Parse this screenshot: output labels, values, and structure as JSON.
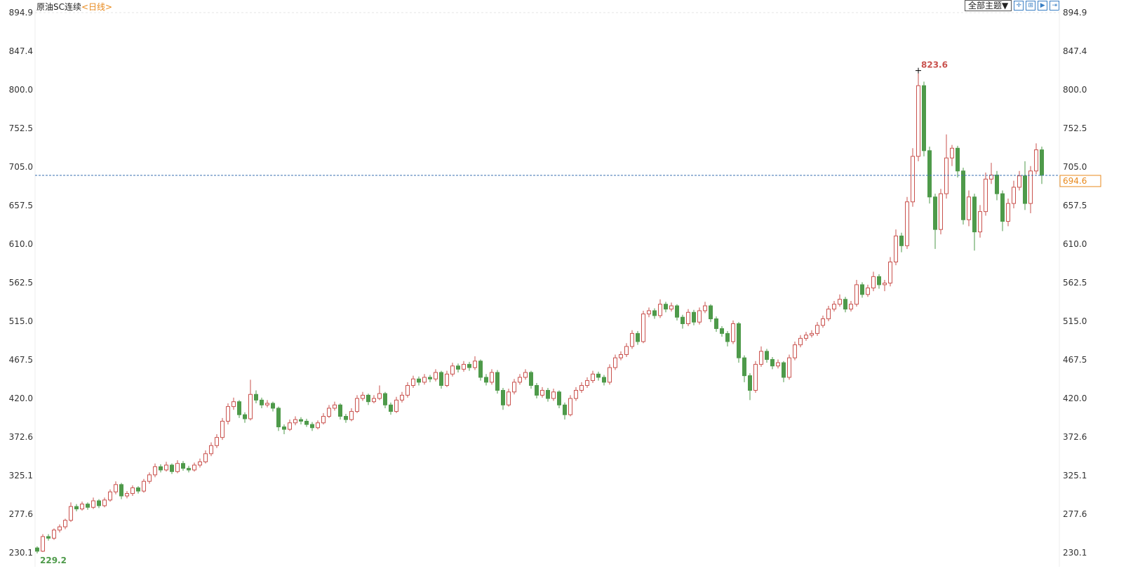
{
  "header": {
    "instrument": "原油SC连续",
    "period": "<日线>",
    "theme_button": "全部主题▼",
    "tool_icons": [
      "crosshair-icon",
      "zoom-range-icon",
      "play-forward-icon",
      "jump-latest-icon"
    ]
  },
  "chart_data": {
    "type": "candlestick",
    "title": "",
    "yticks": [
      "230.1",
      "277.6",
      "325.1",
      "372.6",
      "420.0",
      "467.5",
      "515.0",
      "562.5",
      "610.0",
      "657.5",
      "705.0",
      "752.5",
      "800.0",
      "847.4",
      "894.9"
    ],
    "ylim": [
      230.1,
      894.9
    ],
    "axis_sides": "left-and-right",
    "grid": false,
    "max_label": "823.6",
    "min_label": "229.2",
    "last_price": 694.6,
    "last_price_label": "694.6",
    "colors": {
      "up": "#c9514d",
      "down": "#4e9a4a",
      "last_line": "#3a6fb0",
      "last_label": "#e8891c",
      "max_label": "#c9514d",
      "min_label": "#4e9a4a"
    },
    "candles_ohlc": [
      [
        236,
        238,
        229.2,
        232
      ],
      [
        232,
        253,
        231,
        250
      ],
      [
        250,
        253,
        245,
        248
      ],
      [
        248,
        260,
        246,
        258
      ],
      [
        258,
        265,
        255,
        262
      ],
      [
        262,
        272,
        259,
        270
      ],
      [
        270,
        292,
        268,
        287
      ],
      [
        287,
        290,
        281,
        284
      ],
      [
        284,
        293,
        282,
        290
      ],
      [
        290,
        292,
        283,
        286
      ],
      [
        286,
        298,
        284,
        294
      ],
      [
        294,
        296,
        285,
        288
      ],
      [
        288,
        298,
        286,
        295
      ],
      [
        295,
        308,
        293,
        305
      ],
      [
        305,
        318,
        302,
        314
      ],
      [
        314,
        316,
        296,
        300
      ],
      [
        300,
        306,
        297,
        303
      ],
      [
        303,
        313,
        300,
        310
      ],
      [
        310,
        312,
        303,
        306
      ],
      [
        306,
        321,
        304,
        318
      ],
      [
        318,
        329,
        315,
        326
      ],
      [
        326,
        340,
        323,
        336
      ],
      [
        336,
        339,
        329,
        332
      ],
      [
        332,
        342,
        330,
        338
      ],
      [
        338,
        340,
        327,
        330
      ],
      [
        330,
        344,
        328,
        340
      ],
      [
        340,
        343,
        331,
        334
      ],
      [
        334,
        337,
        329,
        332
      ],
      [
        332,
        341,
        330,
        338
      ],
      [
        338,
        346,
        335,
        342
      ],
      [
        342,
        356,
        340,
        352
      ],
      [
        352,
        366,
        349,
        362
      ],
      [
        362,
        376,
        359,
        372
      ],
      [
        372,
        396,
        369,
        392
      ],
      [
        392,
        414,
        388,
        410
      ],
      [
        410,
        421,
        406,
        416
      ],
      [
        416,
        418,
        396,
        400
      ],
      [
        400,
        403,
        390,
        395
      ],
      [
        395,
        443,
        393,
        425
      ],
      [
        425,
        430,
        414,
        418
      ],
      [
        418,
        421,
        408,
        412
      ],
      [
        412,
        418,
        409,
        414
      ],
      [
        414,
        416,
        404,
        408
      ],
      [
        408,
        410,
        380,
        385
      ],
      [
        385,
        388,
        376,
        382
      ],
      [
        382,
        394,
        380,
        390
      ],
      [
        390,
        398,
        387,
        394
      ],
      [
        394,
        397,
        388,
        392
      ],
      [
        392,
        395,
        385,
        388
      ],
      [
        388,
        391,
        380,
        384
      ],
      [
        384,
        393,
        382,
        390
      ],
      [
        390,
        402,
        388,
        398
      ],
      [
        398,
        412,
        396,
        408
      ],
      [
        408,
        416,
        405,
        412
      ],
      [
        412,
        414,
        394,
        398
      ],
      [
        398,
        401,
        390,
        394
      ],
      [
        394,
        408,
        392,
        404
      ],
      [
        404,
        424,
        402,
        420
      ],
      [
        420,
        428,
        417,
        424
      ],
      [
        424,
        426,
        412,
        416
      ],
      [
        416,
        424,
        414,
        420
      ],
      [
        420,
        436,
        418,
        426
      ],
      [
        426,
        428,
        408,
        412
      ],
      [
        412,
        415,
        400,
        404
      ],
      [
        404,
        422,
        402,
        418
      ],
      [
        418,
        428,
        415,
        424
      ],
      [
        424,
        440,
        421,
        436
      ],
      [
        436,
        448,
        433,
        444
      ],
      [
        444,
        447,
        436,
        440
      ],
      [
        440,
        450,
        437,
        446
      ],
      [
        446,
        449,
        440,
        444
      ],
      [
        444,
        456,
        441,
        452
      ],
      [
        452,
        454,
        432,
        436
      ],
      [
        436,
        454,
        434,
        450
      ],
      [
        450,
        464,
        447,
        460
      ],
      [
        460,
        463,
        452,
        456
      ],
      [
        456,
        466,
        453,
        462
      ],
      [
        462,
        465,
        454,
        458
      ],
      [
        458,
        472,
        455,
        466
      ],
      [
        466,
        468,
        442,
        446
      ],
      [
        446,
        450,
        436,
        440
      ],
      [
        440,
        456,
        437,
        452
      ],
      [
        452,
        455,
        426,
        430
      ],
      [
        430,
        433,
        406,
        412
      ],
      [
        412,
        432,
        410,
        428
      ],
      [
        428,
        444,
        425,
        440
      ],
      [
        440,
        450,
        437,
        446
      ],
      [
        446,
        456,
        443,
        452
      ],
      [
        452,
        454,
        432,
        436
      ],
      [
        436,
        439,
        420,
        424
      ],
      [
        424,
        434,
        421,
        430
      ],
      [
        430,
        433,
        416,
        420
      ],
      [
        420,
        432,
        417,
        428
      ],
      [
        428,
        430,
        408,
        412
      ],
      [
        412,
        415,
        394,
        400
      ],
      [
        400,
        424,
        398,
        420
      ],
      [
        420,
        434,
        417,
        430
      ],
      [
        430,
        440,
        427,
        436
      ],
      [
        436,
        446,
        433,
        442
      ],
      [
        442,
        454,
        439,
        450
      ],
      [
        450,
        453,
        442,
        446
      ],
      [
        446,
        449,
        436,
        440
      ],
      [
        440,
        462,
        437,
        458
      ],
      [
        458,
        474,
        455,
        470
      ],
      [
        470,
        478,
        467,
        474
      ],
      [
        474,
        488,
        471,
        484
      ],
      [
        484,
        504,
        481,
        500
      ],
      [
        500,
        503,
        486,
        490
      ],
      [
        490,
        528,
        488,
        524
      ],
      [
        524,
        532,
        520,
        528
      ],
      [
        528,
        531,
        518,
        522
      ],
      [
        522,
        542,
        519,
        536
      ],
      [
        536,
        539,
        526,
        530
      ],
      [
        530,
        538,
        527,
        534
      ],
      [
        534,
        536,
        516,
        520
      ],
      [
        520,
        523,
        506,
        512
      ],
      [
        512,
        530,
        509,
        526
      ],
      [
        526,
        529,
        510,
        514
      ],
      [
        514,
        532,
        511,
        528
      ],
      [
        528,
        539,
        525,
        534
      ],
      [
        534,
        536,
        514,
        518
      ],
      [
        518,
        521,
        502,
        506
      ],
      [
        506,
        509,
        496,
        500
      ],
      [
        500,
        503,
        484,
        490
      ],
      [
        490,
        516,
        487,
        512
      ],
      [
        512,
        514,
        464,
        470
      ],
      [
        470,
        473,
        440,
        448
      ],
      [
        448,
        451,
        418,
        430
      ],
      [
        430,
        466,
        427,
        462
      ],
      [
        462,
        484,
        459,
        478
      ],
      [
        478,
        481,
        464,
        468
      ],
      [
        468,
        471,
        456,
        460
      ],
      [
        460,
        468,
        457,
        464
      ],
      [
        464,
        466,
        440,
        446
      ],
      [
        446,
        474,
        443,
        470
      ],
      [
        470,
        490,
        467,
        486
      ],
      [
        486,
        498,
        483,
        494
      ],
      [
        494,
        502,
        491,
        498
      ],
      [
        498,
        504,
        495,
        500
      ],
      [
        500,
        514,
        497,
        510
      ],
      [
        510,
        522,
        507,
        518
      ],
      [
        518,
        534,
        515,
        530
      ],
      [
        530,
        540,
        527,
        536
      ],
      [
        536,
        548,
        533,
        542
      ],
      [
        542,
        545,
        526,
        530
      ],
      [
        530,
        540,
        527,
        536
      ],
      [
        536,
        566,
        533,
        560
      ],
      [
        560,
        563,
        544,
        548
      ],
      [
        548,
        560,
        545,
        556
      ],
      [
        556,
        576,
        552,
        570
      ],
      [
        570,
        573,
        555,
        560
      ],
      [
        560,
        566,
        552,
        562
      ],
      [
        562,
        594,
        558,
        588
      ],
      [
        588,
        628,
        584,
        620
      ],
      [
        620,
        624,
        600,
        608
      ],
      [
        608,
        668,
        604,
        662
      ],
      [
        662,
        728,
        656,
        718
      ],
      [
        718,
        823.6,
        712,
        805
      ],
      [
        805,
        810,
        718,
        725
      ],
      [
        725,
        730,
        660,
        668
      ],
      [
        668,
        672,
        604,
        628
      ],
      [
        628,
        678,
        622,
        672
      ],
      [
        672,
        745,
        666,
        716
      ],
      [
        716,
        732,
        706,
        728
      ],
      [
        728,
        731,
        692,
        700
      ],
      [
        700,
        704,
        634,
        640
      ],
      [
        640,
        676,
        632,
        668
      ],
      [
        668,
        672,
        602,
        625
      ],
      [
        625,
        658,
        618,
        650
      ],
      [
        650,
        698,
        645,
        690
      ],
      [
        690,
        710,
        684,
        695
      ],
      [
        695,
        700,
        664,
        672
      ],
      [
        672,
        676,
        626,
        638
      ],
      [
        638,
        666,
        632,
        660
      ],
      [
        660,
        688,
        654,
        680
      ],
      [
        680,
        700,
        676,
        694
      ],
      [
        694,
        712,
        652,
        660
      ],
      [
        660,
        706,
        648,
        700
      ],
      [
        700,
        734,
        696,
        726
      ],
      [
        726,
        730,
        684,
        694.6
      ]
    ]
  }
}
